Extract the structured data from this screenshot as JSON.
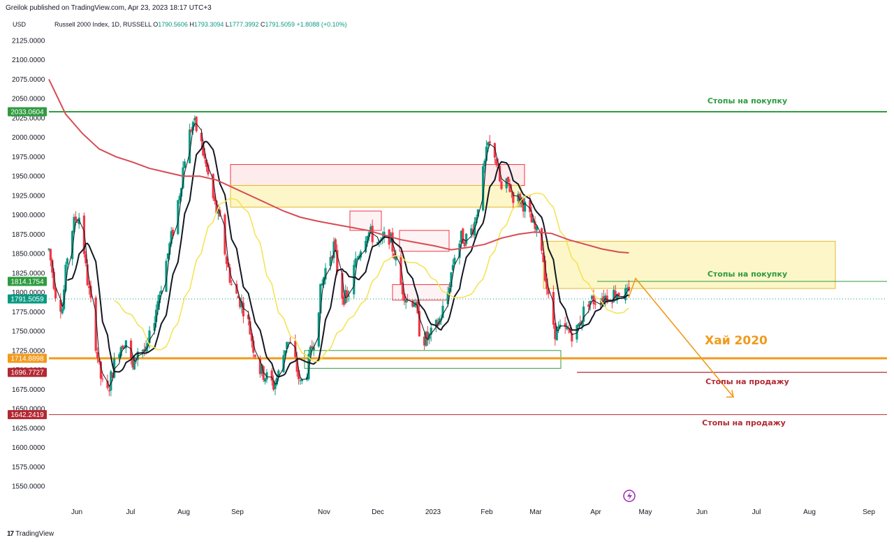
{
  "header": {
    "attribution": "Greilok published on TradingView.com, Apr 23, 2023 18:17 UTC+3",
    "currency": "USD",
    "symbol": "Russell 2000 Index, 1D, RUSSELL",
    "ohlc": {
      "open_label": "O",
      "open": "1790.5606",
      "high_label": "H",
      "high": "1793.3094",
      "low_label": "L",
      "low": "1777.3992",
      "close_label": "C",
      "close": "1791.5059",
      "change": "+1.8088 (+0.10%)"
    }
  },
  "footer": {
    "brand": "TradingView",
    "brand_mark": "17"
  },
  "colors": {
    "candle_up": "#089981",
    "candle_down": "#f23645",
    "ma_short": "#131722",
    "ma_mid": "#f5e24d",
    "ma_long": "#d64b55",
    "buy_stops": "#2e9b3f",
    "sell_stops": "#b22833",
    "hai_2020": "#f19a1c"
  },
  "chart_data": {
    "type": "candlestick",
    "symbol": "Russell 2000 Index",
    "timeframe": "1D",
    "ylim": [
      1525,
      2150
    ],
    "y_ticks": [
      "2125.0000",
      "2100.0000",
      "2075.0000",
      "2050.0000",
      "2025.0000",
      "2000.0000",
      "1975.0000",
      "1950.0000",
      "1925.0000",
      "1900.0000",
      "1875.0000",
      "1850.0000",
      "1825.0000",
      "1800.0000",
      "1775.0000",
      "1750.0000",
      "1725.0000",
      "1700.0000",
      "1675.0000",
      "1650.0000",
      "1625.0000",
      "1600.0000",
      "1575.0000",
      "1550.0000"
    ],
    "x_ticks": [
      "Jun",
      "Jul",
      "Aug",
      "Sep",
      "Nov",
      "Dec",
      "2023",
      "Feb",
      "Mar",
      "Apr",
      "May",
      "Jun",
      "Jul",
      "Aug",
      "Sep"
    ],
    "price_path": [
      [
        0,
        1855
      ],
      [
        4,
        1800
      ],
      [
        8,
        1780
      ],
      [
        12,
        1870
      ],
      [
        16,
        1895
      ],
      [
        19,
        1900
      ],
      [
        22,
        1830
      ],
      [
        26,
        1770
      ],
      [
        30,
        1700
      ],
      [
        34,
        1660
      ],
      [
        38,
        1700
      ],
      [
        42,
        1730
      ],
      [
        46,
        1740
      ],
      [
        50,
        1700
      ],
      [
        54,
        1735
      ],
      [
        58,
        1720
      ],
      [
        62,
        1760
      ],
      [
        66,
        1800
      ],
      [
        70,
        1840
      ],
      [
        74,
        1880
      ],
      [
        78,
        1930
      ],
      [
        82,
        1990
      ],
      [
        86,
        2020
      ],
      [
        90,
        2000
      ],
      [
        94,
        1960
      ],
      [
        98,
        1920
      ],
      [
        102,
        1890
      ],
      [
        106,
        1840
      ],
      [
        110,
        1800
      ],
      [
        114,
        1790
      ],
      [
        118,
        1770
      ],
      [
        122,
        1730
      ],
      [
        126,
        1700
      ],
      [
        130,
        1690
      ],
      [
        134,
        1680
      ],
      [
        138,
        1700
      ],
      [
        142,
        1740
      ],
      [
        146,
        1720
      ],
      [
        150,
        1680
      ],
      [
        154,
        1700
      ],
      [
        158,
        1740
      ],
      [
        162,
        1800
      ],
      [
        166,
        1840
      ],
      [
        170,
        1860
      ],
      [
        174,
        1800
      ],
      [
        178,
        1790
      ],
      [
        182,
        1830
      ],
      [
        186,
        1860
      ],
      [
        190,
        1880
      ],
      [
        194,
        1870
      ],
      [
        198,
        1860
      ],
      [
        202,
        1880
      ],
      [
        206,
        1850
      ],
      [
        210,
        1810
      ],
      [
        214,
        1790
      ],
      [
        218,
        1790
      ],
      [
        222,
        1740
      ],
      [
        226,
        1740
      ],
      [
        230,
        1750
      ],
      [
        234,
        1770
      ],
      [
        238,
        1800
      ],
      [
        242,
        1850
      ],
      [
        246,
        1870
      ],
      [
        250,
        1870
      ],
      [
        254,
        1890
      ],
      [
        258,
        1940
      ],
      [
        262,
        1990
      ],
      [
        266,
        1980
      ],
      [
        270,
        1930
      ],
      [
        274,
        1940
      ],
      [
        278,
        1920
      ],
      [
        282,
        1920
      ],
      [
        286,
        1900
      ],
      [
        290,
        1880
      ],
      [
        294,
        1860
      ],
      [
        298,
        1790
      ],
      [
        302,
        1750
      ],
      [
        306,
        1750
      ],
      [
        310,
        1750
      ],
      [
        314,
        1745
      ],
      [
        318,
        1770
      ],
      [
        322,
        1790
      ],
      [
        326,
        1790
      ],
      [
        330,
        1795
      ],
      [
        334,
        1795
      ],
      [
        338,
        1800
      ],
      [
        342,
        1800
      ],
      [
        346,
        1795
      ]
    ],
    "moving_averages": [
      {
        "name": "fast",
        "color": "#131722"
      },
      {
        "name": "medium",
        "color": "#131722"
      },
      {
        "name": "slow",
        "color": "#f5e24d"
      },
      {
        "name": "long",
        "color": "#d64b55",
        "points": [
          [
            0,
            2075
          ],
          [
            10,
            2030
          ],
          [
            20,
            2005
          ],
          [
            30,
            1985
          ],
          [
            40,
            1975
          ],
          [
            50,
            1968
          ],
          [
            60,
            1960
          ],
          [
            70,
            1955
          ],
          [
            80,
            1950
          ],
          [
            90,
            1950
          ],
          [
            100,
            1945
          ],
          [
            110,
            1935
          ],
          [
            120,
            1925
          ],
          [
            130,
            1915
          ],
          [
            140,
            1905
          ],
          [
            150,
            1897
          ],
          [
            160,
            1892
          ],
          [
            170,
            1888
          ],
          [
            180,
            1884
          ],
          [
            190,
            1880
          ],
          [
            200,
            1874
          ],
          [
            210,
            1868
          ],
          [
            220,
            1864
          ],
          [
            230,
            1860
          ],
          [
            240,
            1855
          ],
          [
            250,
            1858
          ],
          [
            260,
            1862
          ],
          [
            270,
            1870
          ],
          [
            280,
            1875
          ],
          [
            290,
            1878
          ],
          [
            300,
            1876
          ],
          [
            310,
            1868
          ],
          [
            320,
            1862
          ],
          [
            330,
            1856
          ],
          [
            340,
            1852
          ],
          [
            346,
            1851
          ]
        ]
      }
    ],
    "price_labels": [
      {
        "value": "2033.0604",
        "color": "#2e9b3f"
      },
      {
        "value": "1814.1754",
        "color": "#2e9b3f"
      },
      {
        "value": "1791.5059",
        "color": "#089981"
      },
      {
        "value": "1714.8898",
        "color": "#f19a1c"
      },
      {
        "value": "1696.7727",
        "color": "#b22833"
      },
      {
        "value": "1642.2419",
        "color": "#b22833"
      }
    ],
    "levels": [
      {
        "price": 2033.0604,
        "color": "#2e9b3f"
      },
      {
        "price": 1814.1754,
        "color": "#2e9b3f"
      },
      {
        "price": 1714.8898,
        "color": "#f19a1c"
      },
      {
        "price": 1696.7727,
        "color": "#b22833"
      },
      {
        "price": 1642.2419,
        "color": "#b22833"
      }
    ],
    "zones": [
      {
        "fill": "rgba(242,54,69,0.10)",
        "stroke": "#f23645",
        "y_top": 1965,
        "y_bot": 1938
      },
      {
        "fill": "rgba(245,226,77,0.30)",
        "stroke": "#e5b92d",
        "y_top": 1938,
        "y_bot": 1910
      },
      {
        "fill": "rgba(245,226,77,0.30)",
        "stroke": "#e5b92d",
        "y_top": 1866,
        "y_bot": 1805
      },
      {
        "fill": "rgba(242,54,69,0.06)",
        "stroke": "#f23645",
        "y_top": 1905,
        "y_bot": 1880
      },
      {
        "fill": "rgba(242,54,69,0.06)",
        "stroke": "#f23645",
        "y_top": 1880,
        "y_bot": 1853
      },
      {
        "fill": "rgba(242,54,69,0.06)",
        "stroke": "#f23645",
        "y_top": 1810,
        "y_bot": 1790
      },
      {
        "fill": "none",
        "stroke": "#2e9b3f",
        "y_top": 1725,
        "y_bot": 1702
      }
    ],
    "annotations": [
      {
        "text": "Стопы на покупку",
        "color": "#2e9b3f",
        "y": 2033.0604
      },
      {
        "text": "Стопы на покупку",
        "color": "#2e9b3f",
        "y": 1814.1754
      },
      {
        "text": "Хай 2020",
        "color": "#f19a1c",
        "y": 1714.8898
      },
      {
        "text": "Стопы на продажу",
        "color": "#b22833",
        "y": 1696.7727
      },
      {
        "text": "Стопы на продажу",
        "color": "#b22833",
        "y": 1642.2419
      }
    ],
    "forecast_path": [
      [
        346,
        1795
      ],
      [
        350,
        1820
      ],
      [
        372,
        1665
      ]
    ]
  }
}
